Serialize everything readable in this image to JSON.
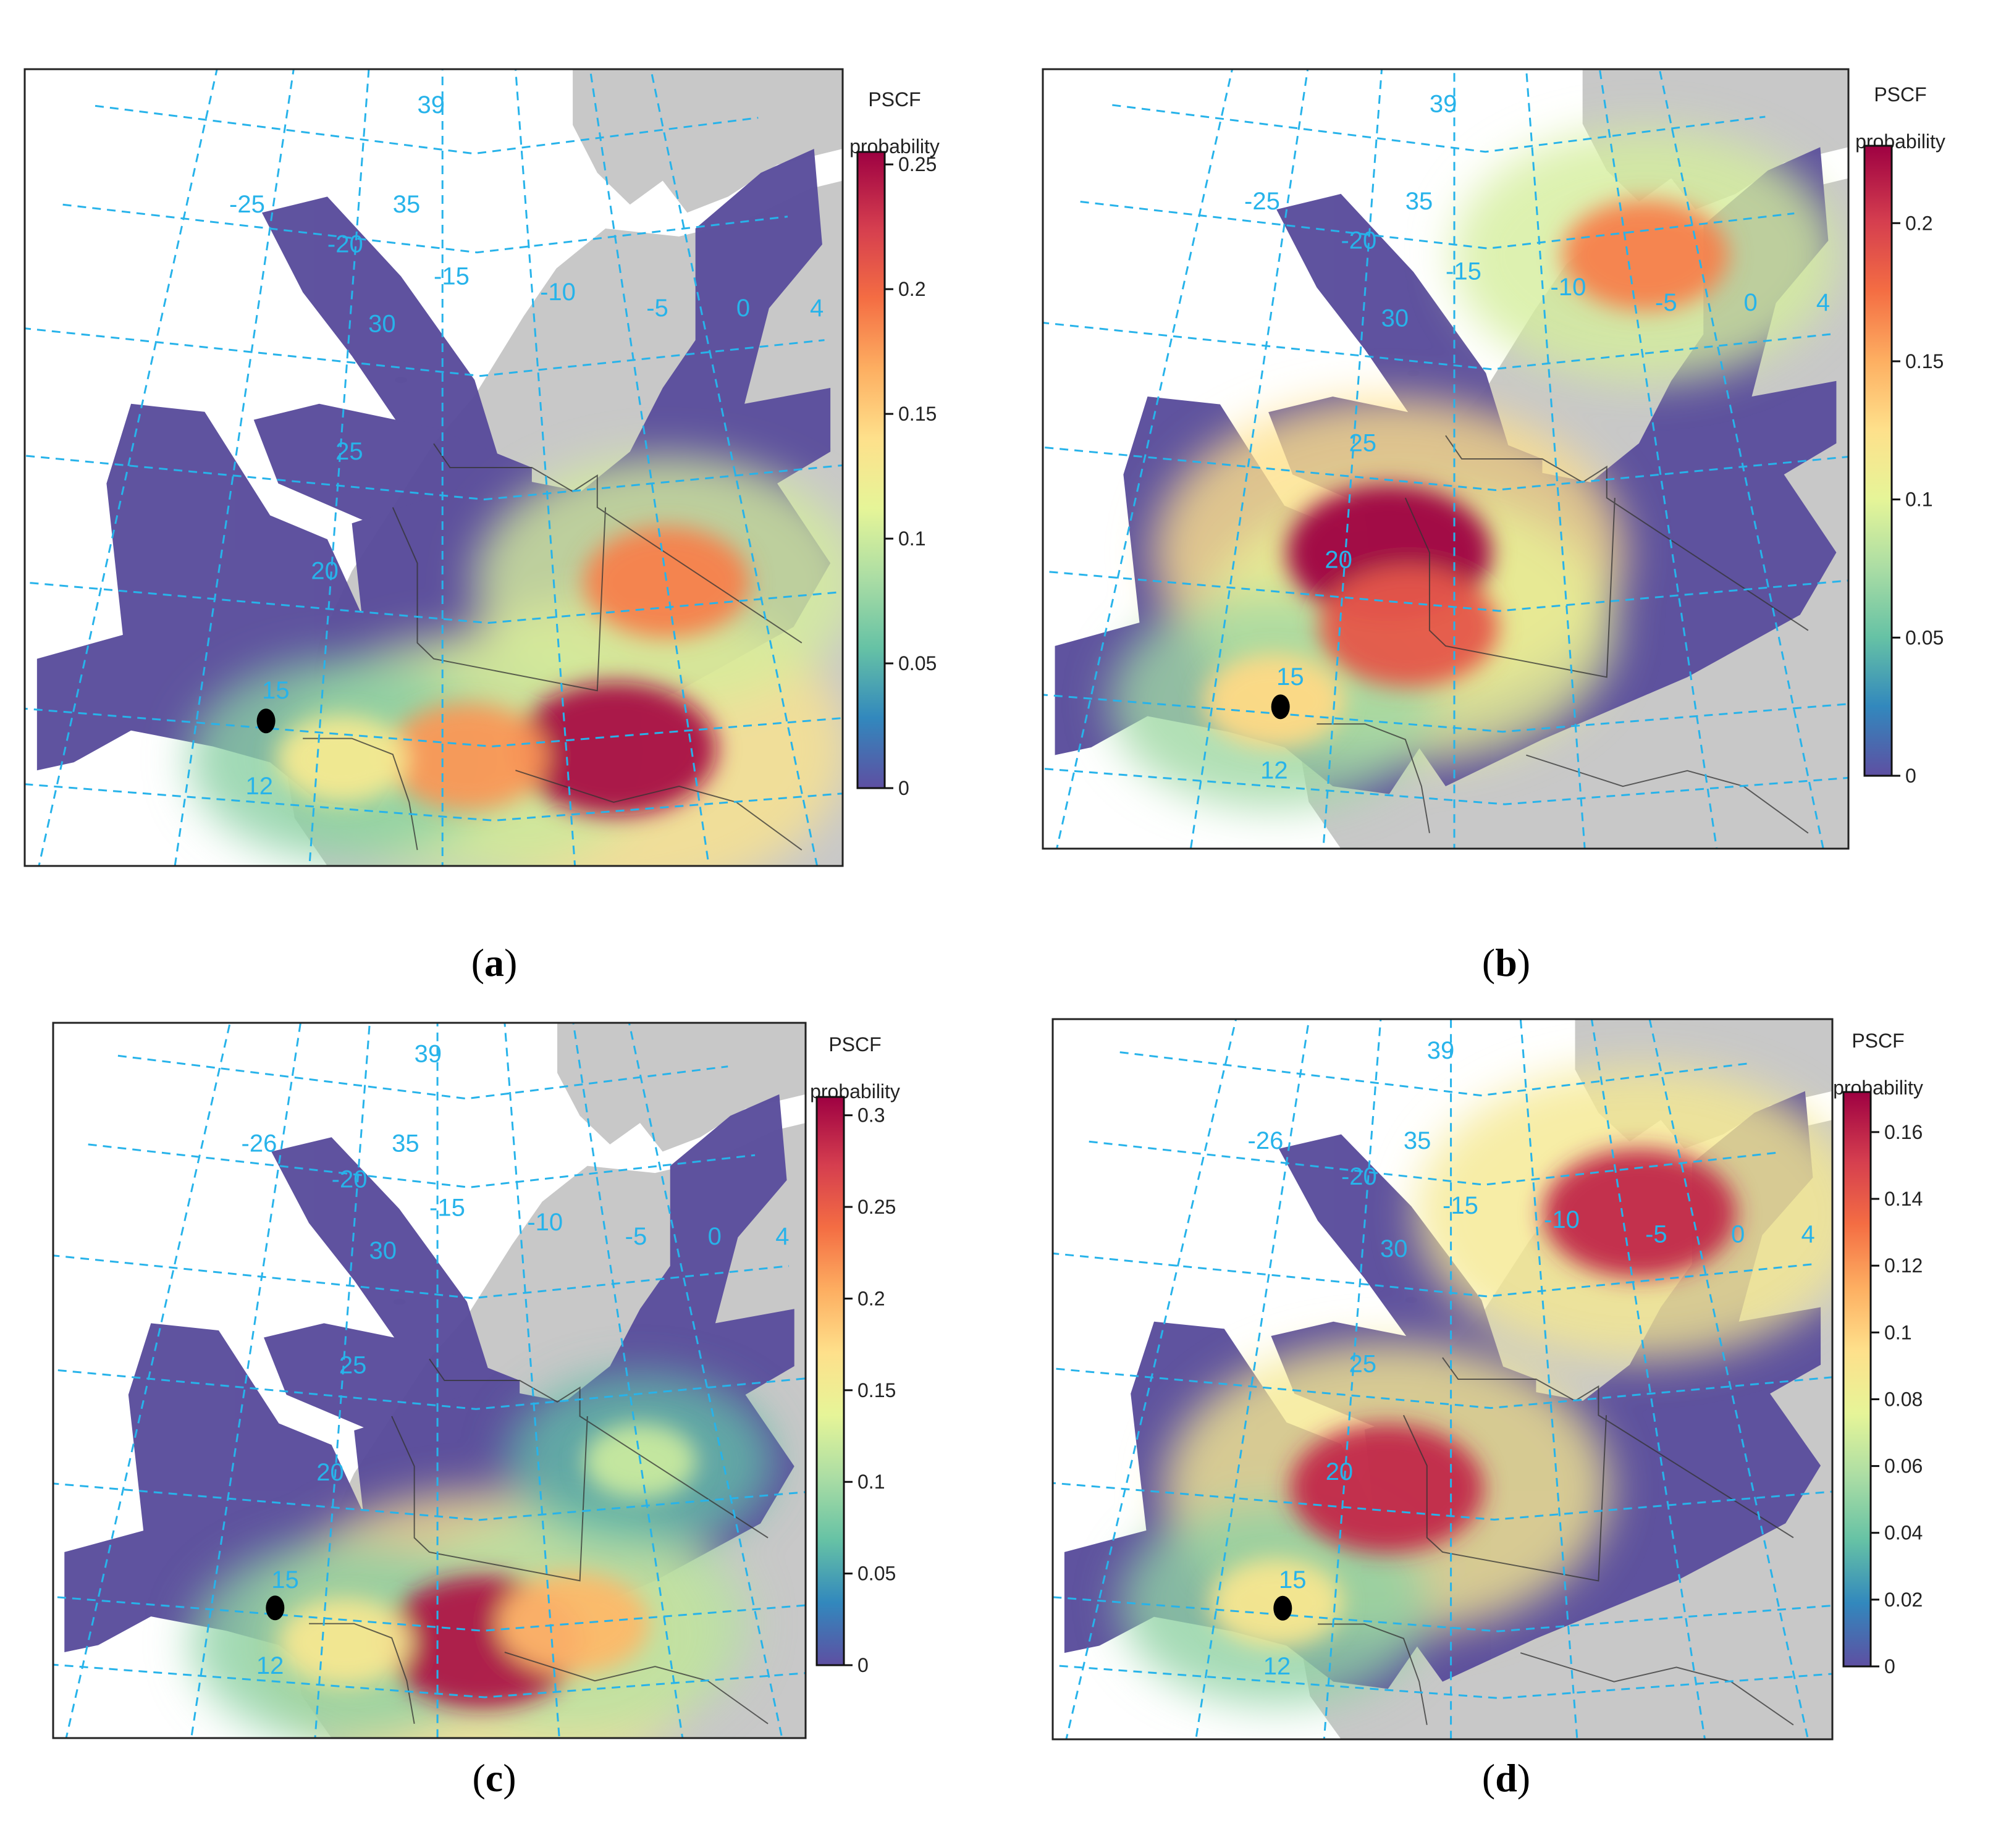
{
  "colors": {
    "background": "#ffffff",
    "land": "#c8c8c8",
    "low_probability": "#5a4d9c",
    "grid": "#27b3ea",
    "border": "#333333",
    "receptor": "#000000",
    "colorbar_stops": [
      "#5e4fa2",
      "#3288bd",
      "#66c2a5",
      "#abdda4",
      "#e6f598",
      "#fee08b",
      "#fdae61",
      "#f46d43",
      "#d53e4f",
      "#9e0142"
    ]
  },
  "icons": {
    "receptor": "receptor-site-icon"
  },
  "panels": [
    {
      "id": "a",
      "caption": "a",
      "colorbar": {
        "title_line1": "PSCF",
        "title_line2": "probability",
        "ticks": [
          "0",
          "0.05",
          "0.1",
          "0.15",
          "0.2",
          "0.25"
        ],
        "tick_values": [
          0,
          0.05,
          0.1,
          0.15,
          0.2,
          0.25
        ],
        "max": 0.255
      },
      "grid_labels": {
        "lat": [
          "39",
          "35",
          "30",
          "25",
          "20",
          "15",
          "12"
        ],
        "lon": [
          "-25",
          "-20",
          "-15",
          "-10",
          "-5",
          "0",
          "4"
        ]
      },
      "hotspots": [
        {
          "lon": -3,
          "lat": 14.5,
          "value": 0.25
        },
        {
          "lon": -9,
          "lat": 14.5,
          "value": 0.18
        },
        {
          "lon": -14,
          "lat": 14,
          "value": 0.13
        },
        {
          "lon": 0,
          "lat": 21,
          "value": 0.19
        }
      ]
    },
    {
      "id": "b",
      "caption": "b",
      "colorbar": {
        "title_line1": "PSCF",
        "title_line2": "probability",
        "ticks": [
          "0",
          "0.05",
          "0.1",
          "0.15",
          "0.2"
        ],
        "tick_values": [
          0,
          0.05,
          0.1,
          0.15,
          0.2
        ],
        "max": 0.228
      },
      "grid_labels": {
        "lat": [
          "39",
          "35",
          "30",
          "25",
          "20",
          "15",
          "12"
        ],
        "lon": [
          "-25",
          "-20",
          "-15",
          "-10",
          "-5",
          "0",
          "4"
        ]
      },
      "hotspots": [
        {
          "lon": -13,
          "lat": 22,
          "value": 0.23
        },
        {
          "lon": -12,
          "lat": 19,
          "value": 0.19
        },
        {
          "lon": -17.5,
          "lat": 15.5,
          "value": 0.13
        },
        {
          "lon": 1,
          "lat": 34,
          "value": 0.17
        }
      ]
    },
    {
      "id": "c",
      "caption": "c",
      "colorbar": {
        "title_line1": "PSCF",
        "title_line2": "probability",
        "ticks": [
          "0",
          "0.05",
          "0.1",
          "0.15",
          "0.2",
          "0.25",
          "0.3"
        ],
        "tick_values": [
          0,
          0.05,
          0.1,
          0.15,
          0.2,
          0.25,
          0.3
        ],
        "max": 0.31
      },
      "grid_labels": {
        "lat": [
          "39",
          "35",
          "30",
          "25",
          "20",
          "15",
          "12"
        ],
        "lon": [
          "-26",
          "-20",
          "-15",
          "-10",
          "-5",
          "0",
          "4"
        ]
      },
      "hotspots": [
        {
          "lon": -8,
          "lat": 14.5,
          "value": 0.3
        },
        {
          "lon": -4,
          "lat": 15,
          "value": 0.2
        },
        {
          "lon": -14,
          "lat": 14,
          "value": 0.16
        },
        {
          "lon": 0,
          "lat": 22,
          "value": 0.12
        }
      ]
    },
    {
      "id": "d",
      "caption": "d",
      "colorbar": {
        "title_line1": "PSCF",
        "title_line2": "probability",
        "ticks": [
          "0",
          "0.02",
          "0.04",
          "0.06",
          "0.08",
          "0.1",
          "0.12",
          "0.14",
          "0.16"
        ],
        "tick_values": [
          0,
          0.02,
          0.04,
          0.06,
          0.08,
          0.1,
          0.12,
          0.14,
          0.16
        ],
        "max": 0.172
      },
      "grid_labels": {
        "lat": [
          "39",
          "35",
          "30",
          "25",
          "20",
          "15",
          "12"
        ],
        "lon": [
          "-26",
          "-20",
          "-15",
          "-10",
          "-5",
          "0",
          "4"
        ]
      },
      "hotspots": [
        {
          "lon": -13,
          "lat": 21,
          "value": 0.16
        },
        {
          "lon": -17.5,
          "lat": 15.5,
          "value": 0.09
        },
        {
          "lon": 1,
          "lat": 33,
          "value": 0.16
        }
      ]
    }
  ]
}
